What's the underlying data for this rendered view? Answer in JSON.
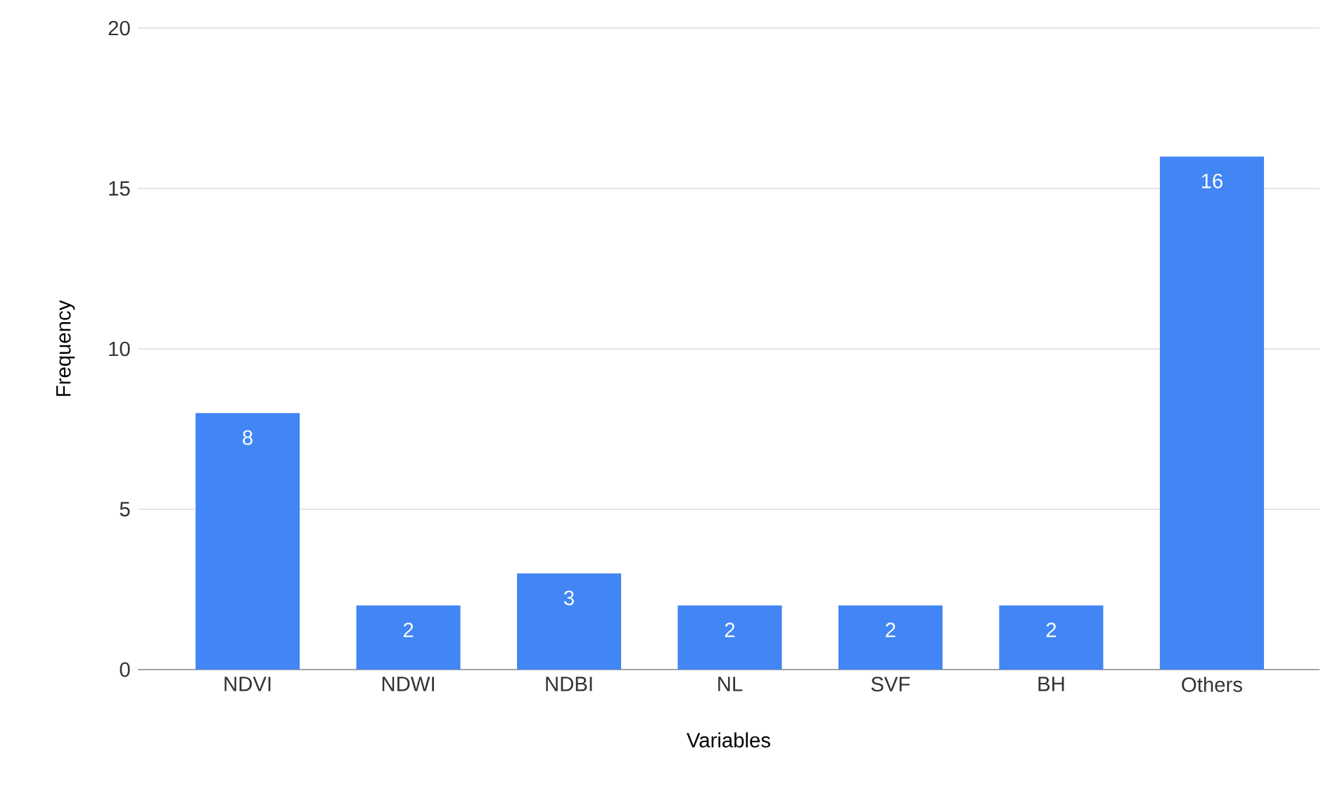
{
  "chart_data": {
    "type": "bar",
    "xlabel": "Variables",
    "ylabel": "Frequency",
    "categories": [
      "NDVI",
      "NDWI",
      "NDBI",
      "NL",
      "SVF",
      "BH",
      "Others"
    ],
    "values": [
      8,
      2,
      3,
      2,
      2,
      2,
      16
    ],
    "color": "#4285f4",
    "ylim": [
      0,
      20
    ],
    "yticks": [
      0,
      5,
      10,
      15,
      20
    ],
    "grid": "y",
    "data_labels": true
  }
}
